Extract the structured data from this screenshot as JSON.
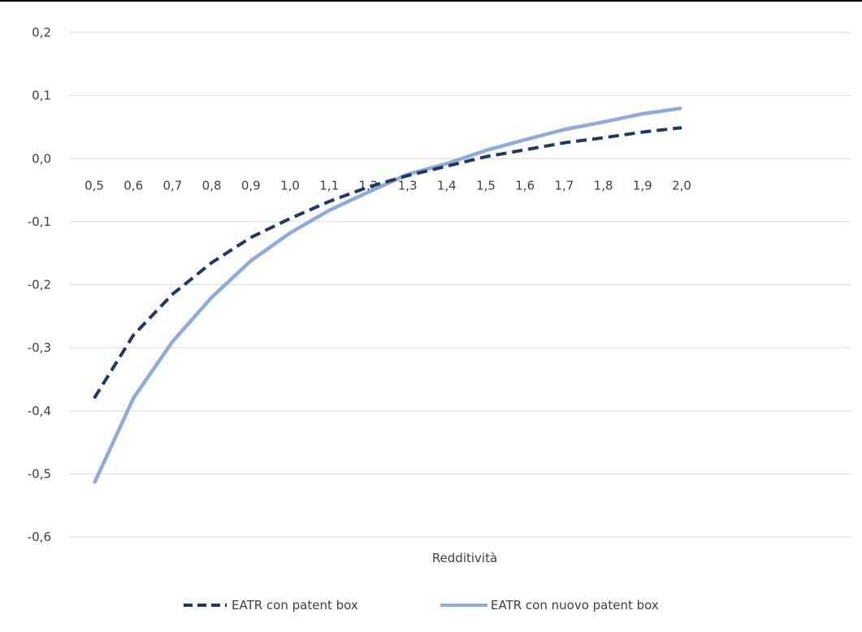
{
  "chart_data": {
    "type": "line",
    "xlabel": "Redditività",
    "ylabel": "",
    "ylim": [
      -0.6,
      0.2
    ],
    "yticks": [
      "0,2",
      "0,1",
      "0,0",
      "-0,1",
      "-0,2",
      "-0,3",
      "-0,4",
      "-0,5",
      "-0,6"
    ],
    "x": [
      "0,5",
      "0,6",
      "0,7",
      "0,8",
      "0,9",
      "1,0",
      "1,1",
      "1,2",
      "1,3",
      "1,4",
      "1,5",
      "1,6",
      "1,7",
      "1,8",
      "1,9",
      "2,0"
    ],
    "grid": true,
    "legend": "bottom",
    "series": [
      {
        "name": "EATR con patent box",
        "color": "#1f3864",
        "style": "dashed",
        "values": [
          -0.38,
          -0.28,
          -0.215,
          -0.165,
          -0.125,
          -0.095,
          -0.068,
          -0.045,
          -0.027,
          -0.012,
          0.003,
          0.014,
          0.025,
          0.033,
          0.042,
          0.049
        ]
      },
      {
        "name": "EATR con nuovo patent box",
        "color": "#8faadc",
        "style": "solid",
        "values": [
          -0.515,
          -0.38,
          -0.29,
          -0.22,
          -0.162,
          -0.118,
          -0.082,
          -0.053,
          -0.025,
          -0.008,
          0.013,
          0.03,
          0.046,
          0.058,
          0.071,
          0.08
        ]
      }
    ]
  }
}
